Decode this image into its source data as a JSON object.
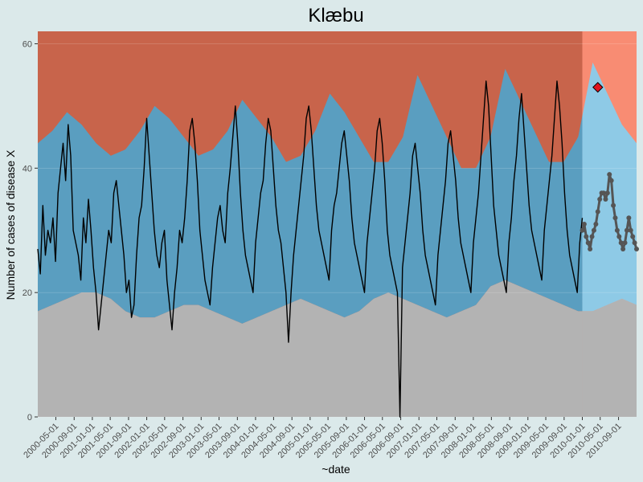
{
  "chart_data": {
    "type": "line",
    "title": "Klæbu",
    "xlabel": "~date",
    "ylabel": "Number of cases of disease X",
    "x_range": [
      "2000-01-01",
      "2010-12-31"
    ],
    "ylim": [
      0,
      62
    ],
    "y_ticks": [
      0,
      20,
      40,
      60
    ],
    "x_tick_labels": [
      "2000-05-01",
      "2000-09-01",
      "2001-01-01",
      "2001-05-01",
      "2001-09-01",
      "2002-01-01",
      "2002-05-01",
      "2002-09-01",
      "2003-01-01",
      "2003-05-01",
      "2003-09-01",
      "2004-01-01",
      "2004-05-01",
      "2004-09-01",
      "2005-01-01",
      "2005-05-01",
      "2005-09-01",
      "2006-01-01",
      "2006-05-01",
      "2006-09-01",
      "2007-01-01",
      "2007-05-01",
      "2007-09-01",
      "2008-01-01",
      "2008-05-01",
      "2008-09-01",
      "2009-01-01",
      "2009-05-01",
      "2009-09-01",
      "2010-01-01",
      "2010-05-01",
      "2010-09-01"
    ],
    "prediction_start": "2010-01-01",
    "band_levels": {
      "lower_threshold_weekly_approx": [
        17,
        18,
        19,
        20,
        20,
        19,
        17,
        16,
        16,
        17,
        18,
        18,
        17,
        16,
        15,
        16,
        17,
        18,
        19,
        18,
        17,
        16,
        17,
        19,
        20,
        19,
        18,
        17,
        16,
        17,
        18,
        21,
        22,
        21,
        20,
        19,
        18,
        17,
        17,
        18,
        19,
        18
      ],
      "upper_threshold_weekly_approx": [
        44,
        46,
        49,
        47,
        44,
        42,
        43,
        46,
        50,
        48,
        45,
        42,
        43,
        46,
        51,
        48,
        45,
        41,
        42,
        46,
        52,
        49,
        45,
        41,
        41,
        45,
        55,
        50,
        45,
        40,
        40,
        45,
        56,
        51,
        46,
        41,
        41,
        45,
        57,
        52,
        47,
        44
      ]
    },
    "series": [
      {
        "type": "observed",
        "values_weekly_approx": [
          27,
          23,
          34,
          26,
          30,
          28,
          32,
          25,
          36,
          40,
          44,
          38,
          47,
          42,
          30,
          28,
          26,
          22,
          32,
          28,
          35,
          30,
          24,
          20,
          14,
          18,
          22,
          26,
          30,
          28,
          36,
          38,
          34,
          30,
          26,
          20,
          22,
          16,
          18,
          26,
          32,
          34,
          40,
          48,
          42,
          36,
          30,
          26,
          24,
          28,
          30,
          22,
          18,
          14,
          20,
          24,
          30,
          28,
          32,
          38,
          46,
          48,
          44,
          38,
          30,
          26,
          22,
          20,
          18,
          24,
          28,
          32,
          34,
          30,
          28,
          36,
          40,
          45,
          50,
          44,
          36,
          30,
          26,
          24,
          22,
          20,
          28,
          32,
          36,
          38,
          44,
          48,
          46,
          40,
          34,
          30,
          28,
          24,
          20,
          12,
          20,
          26,
          30,
          34,
          38,
          42,
          48,
          50,
          46,
          40,
          34,
          30,
          28,
          26,
          24,
          22,
          30,
          34,
          36,
          40,
          44,
          46,
          42,
          38,
          32,
          28,
          26,
          24,
          22,
          20,
          28,
          32,
          36,
          40,
          46,
          48,
          44,
          38,
          30,
          26,
          24,
          22,
          20,
          0,
          24,
          28,
          32,
          36,
          42,
          44,
          40,
          36,
          30,
          26,
          24,
          22,
          20,
          18,
          26,
          30,
          34,
          38,
          44,
          46,
          42,
          38,
          32,
          28,
          26,
          24,
          22,
          20,
          28,
          32,
          36,
          42,
          48,
          54,
          50,
          42,
          34,
          30,
          26,
          24,
          22,
          20,
          28,
          32,
          38,
          42,
          48,
          52,
          46,
          40,
          34,
          30,
          28,
          26,
          24,
          22,
          30,
          34,
          38,
          42,
          48,
          54,
          50,
          44,
          36,
          30,
          26,
          24,
          22,
          20,
          28,
          32
        ]
      },
      {
        "type": "prediction",
        "values_weekly_approx": [
          30,
          31,
          29,
          28,
          27,
          29,
          30,
          31,
          33,
          35,
          36,
          36,
          35,
          36,
          39,
          38,
          34,
          32,
          30,
          29,
          28,
          27,
          28,
          30,
          32,
          30,
          29,
          28,
          27
        ]
      }
    ],
    "outbreak_points": [
      {
        "date": "2010-04-15",
        "value": 53
      }
    ],
    "colors": {
      "page_background": "#dbe9ea",
      "lower_band": "#b3b3b3",
      "normal_band": "#5a9ec0",
      "upper_band": "#c8644b",
      "prediction_normal_band": "#8ecae6",
      "prediction_upper_band": "#f88c73",
      "observed_line": "#000000",
      "prediction_line": "#555555",
      "outbreak_marker": "#e0141e"
    }
  }
}
